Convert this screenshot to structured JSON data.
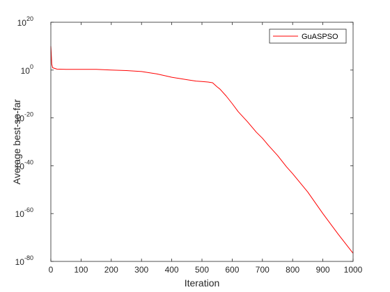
{
  "chart_data": {
    "type": "line",
    "xlabel": "Iteration",
    "ylabel": "Average best-so-far",
    "xlim": [
      0,
      1000
    ],
    "ylim_exponent": [
      -80,
      20
    ],
    "y_scale": "log",
    "y_tick_base": "10",
    "x_ticks": [
      0,
      100,
      200,
      300,
      400,
      500,
      600,
      700,
      800,
      900,
      1000
    ],
    "y_tick_exponents": [
      20,
      0,
      -20,
      -40,
      -60,
      -80
    ],
    "grid": false,
    "legend_position": "top-right",
    "series": [
      {
        "name": "GuASPSO",
        "color": "#ff0000",
        "x": [
          0,
          1,
          3,
          6,
          10,
          20,
          50,
          100,
          150,
          200,
          250,
          300,
          320,
          350,
          380,
          400,
          420,
          450,
          480,
          500,
          520,
          535,
          550,
          560,
          580,
          600,
          620,
          650,
          680,
          700,
          720,
          750,
          780,
          800,
          850,
          900,
          950,
          1000
        ],
        "y_exponent": [
          10,
          8,
          2.5,
          1,
          0.8,
          0.4,
          0.3,
          0.3,
          0.3,
          0,
          -0.2,
          -0.6,
          -1,
          -1.6,
          -2.4,
          -3,
          -3.4,
          -4,
          -4.6,
          -4.8,
          -5,
          -5.3,
          -7,
          -8,
          -10.8,
          -14,
          -17.4,
          -21.5,
          -26,
          -28.5,
          -31.5,
          -35.7,
          -40.5,
          -43.3,
          -51,
          -60,
          -68.5,
          -76.6
        ]
      }
    ]
  }
}
